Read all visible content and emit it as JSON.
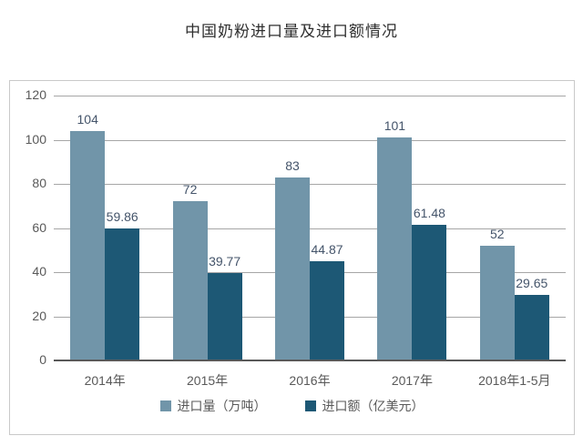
{
  "title": "中国奶粉进口量及进口额情况",
  "chart_data": {
    "type": "bar",
    "title": "中国奶粉进口量及进口额情况",
    "categories": [
      "2014年",
      "2015年",
      "2016年",
      "2017年",
      "2018年1-5月"
    ],
    "series": [
      {
        "name": "进口量（万吨）",
        "values": [
          104,
          72,
          83,
          101,
          52
        ],
        "color": "#7195a9"
      },
      {
        "name": "进口额（亿美元）",
        "values": [
          59.86,
          39.77,
          44.87,
          61.48,
          29.65
        ],
        "color": "#1d5875"
      }
    ],
    "xlabel": "",
    "ylabel": "",
    "ylim": [
      0,
      120
    ],
    "ytick_step": 20,
    "grid": true,
    "legend_position": "bottom",
    "value_labels": true
  },
  "colors": {
    "series1": "#7195a9",
    "series2": "#1d5875",
    "gridline": "#a6a6a6",
    "axis_line": "#595959",
    "tick_text": "#595959",
    "value_label_text": "#44546a",
    "category_text": "#595959",
    "panel_border": "#c9c9c9",
    "title_text": "#2f2f2f",
    "background": "#ffffff"
  }
}
